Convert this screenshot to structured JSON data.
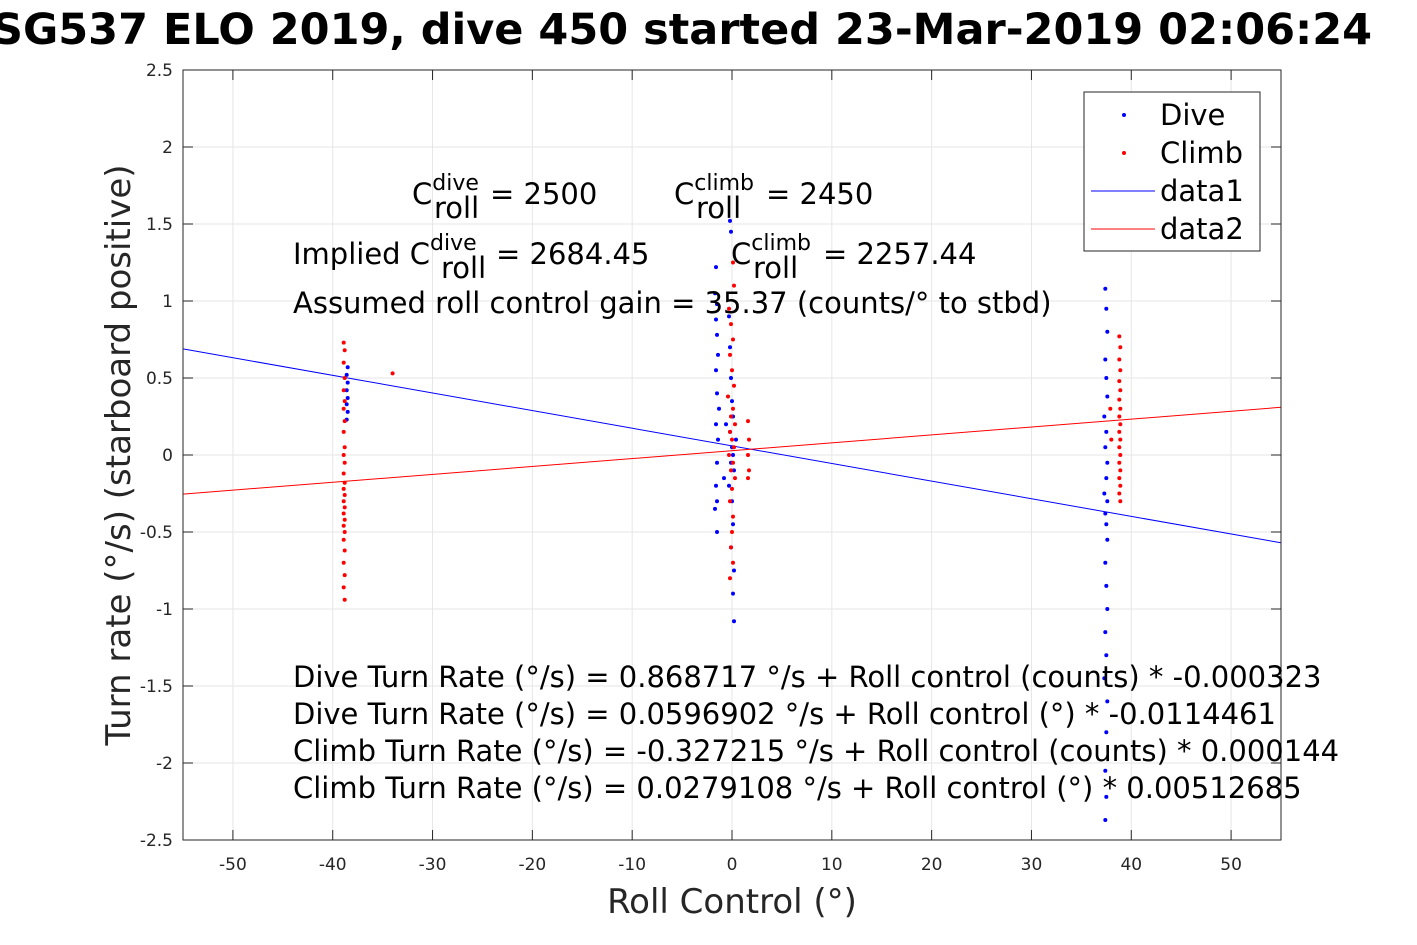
{
  "chart_data": {
    "type": "scatter",
    "title": "SG537 ELO 2019, dive 450 started 23-Mar-2019 02:06:24",
    "xlabel": "Roll Control (°)",
    "ylabel": "Turn rate (°/s) (starboard positive)",
    "xlim": [
      -55,
      55
    ],
    "ylim": [
      -2.5,
      2.5
    ],
    "x_ticks": [
      -50,
      -40,
      -30,
      -20,
      -10,
      0,
      10,
      20,
      30,
      40,
      50
    ],
    "y_ticks": [
      -2.5,
      -2,
      -1.5,
      -1,
      -0.5,
      0,
      0.5,
      1,
      1.5,
      2,
      2.5
    ],
    "x_tick_labels": [
      "-50",
      "-40",
      "-30",
      "-20",
      "-10",
      "0",
      "10",
      "20",
      "30",
      "40",
      "50"
    ],
    "y_tick_labels": [
      "-2.5",
      "-2",
      "-1.5",
      "-1",
      "-0.5",
      "0",
      "0.5",
      "1",
      "1.5",
      "2",
      "2.5"
    ],
    "grid": true,
    "legend_position": "top-right",
    "series": [
      {
        "name": "Dive",
        "color": "#0000ff",
        "marker": "dot",
        "points": [
          [
            -38.5,
            0.57
          ],
          [
            -38.6,
            0.52
          ],
          [
            -38.5,
            0.47
          ],
          [
            -38.6,
            0.42
          ],
          [
            -38.5,
            0.37
          ],
          [
            -38.6,
            0.33
          ],
          [
            -38.5,
            0.28
          ],
          [
            -38.6,
            0.23
          ],
          [
            -0.2,
            1.52
          ],
          [
            -0.1,
            1.45
          ],
          [
            -1.6,
            1.22
          ],
          [
            -1.7,
            1.05
          ],
          [
            -1.5,
            0.98
          ],
          [
            -1.6,
            0.88
          ],
          [
            -1.5,
            0.78
          ],
          [
            -1.4,
            0.65
          ],
          [
            -1.6,
            0.55
          ],
          [
            -1.5,
            0.4
          ],
          [
            -1.3,
            0.3
          ],
          [
            -1.6,
            0.2
          ],
          [
            -1.4,
            0.1
          ],
          [
            -1.5,
            -0.05
          ],
          [
            -1.6,
            -0.2
          ],
          [
            -1.5,
            -0.3
          ],
          [
            -1.7,
            -0.35
          ],
          [
            -1.5,
            -0.5
          ],
          [
            -0.3,
            0.9
          ],
          [
            -0.2,
            0.7
          ],
          [
            -0.1,
            0.5
          ],
          [
            0.0,
            0.35
          ],
          [
            0.1,
            0.25
          ],
          [
            -0.2,
            0.15
          ],
          [
            0.0,
            0.05
          ],
          [
            0.1,
            0.0
          ],
          [
            -0.1,
            -0.05
          ],
          [
            0.2,
            -0.1
          ],
          [
            -0.3,
            -0.2
          ],
          [
            0.0,
            -0.3
          ],
          [
            0.1,
            -0.45
          ],
          [
            -0.1,
            -0.6
          ],
          [
            0.2,
            -0.75
          ],
          [
            0.1,
            -0.9
          ],
          [
            0.2,
            -1.08
          ],
          [
            -0.6,
            0.2
          ],
          [
            0.4,
            0.1
          ],
          [
            -0.8,
            -0.15
          ],
          [
            37.4,
            1.08
          ],
          [
            37.5,
            0.95
          ],
          [
            37.6,
            0.8
          ],
          [
            37.4,
            0.62
          ],
          [
            37.5,
            0.5
          ],
          [
            37.6,
            0.38
          ],
          [
            37.3,
            0.25
          ],
          [
            37.5,
            0.15
          ],
          [
            37.4,
            0.05
          ],
          [
            37.6,
            -0.05
          ],
          [
            37.5,
            -0.15
          ],
          [
            37.3,
            -0.25
          ],
          [
            37.6,
            -0.3
          ],
          [
            37.4,
            -0.38
          ],
          [
            37.5,
            -0.45
          ],
          [
            37.6,
            -0.55
          ],
          [
            37.4,
            -0.7
          ],
          [
            37.5,
            -0.85
          ],
          [
            37.6,
            -1.0
          ],
          [
            37.4,
            -1.15
          ],
          [
            37.5,
            -1.3
          ],
          [
            37.3,
            -1.45
          ],
          [
            37.6,
            -1.6
          ],
          [
            37.5,
            -1.8
          ],
          [
            37.4,
            -2.05
          ],
          [
            37.5,
            -2.22
          ],
          [
            37.4,
            -2.37
          ]
        ]
      },
      {
        "name": "Climb",
        "color": "#ff0000",
        "marker": "dot",
        "points": [
          [
            -38.9,
            0.73
          ],
          [
            -38.8,
            0.68
          ],
          [
            -38.9,
            0.6
          ],
          [
            -38.8,
            0.5
          ],
          [
            -38.9,
            0.42
          ],
          [
            -38.8,
            0.35
          ],
          [
            -38.9,
            0.3
          ],
          [
            -38.8,
            0.22
          ],
          [
            -38.9,
            0.15
          ],
          [
            -38.8,
            0.05
          ],
          [
            -38.9,
            0.0
          ],
          [
            -38.8,
            -0.05
          ],
          [
            -38.9,
            -0.12
          ],
          [
            -38.8,
            -0.18
          ],
          [
            -38.9,
            -0.22
          ],
          [
            -38.8,
            -0.26
          ],
          [
            -38.9,
            -0.3
          ],
          [
            -38.8,
            -0.34
          ],
          [
            -38.9,
            -0.38
          ],
          [
            -38.8,
            -0.42
          ],
          [
            -38.9,
            -0.46
          ],
          [
            -38.8,
            -0.5
          ],
          [
            -38.9,
            -0.55
          ],
          [
            -38.8,
            -0.62
          ],
          [
            -38.9,
            -0.7
          ],
          [
            -38.8,
            -0.78
          ],
          [
            -38.9,
            -0.86
          ],
          [
            -38.8,
            -0.94
          ],
          [
            -34.0,
            0.53
          ],
          [
            0.1,
            1.25
          ],
          [
            0.2,
            1.1
          ],
          [
            -0.3,
            0.95
          ],
          [
            -0.1,
            0.85
          ],
          [
            0.1,
            0.75
          ],
          [
            -0.2,
            0.65
          ],
          [
            0.0,
            0.55
          ],
          [
            0.2,
            0.45
          ],
          [
            -0.4,
            0.38
          ],
          [
            0.1,
            0.3
          ],
          [
            -0.1,
            0.25
          ],
          [
            0.3,
            0.2
          ],
          [
            -0.2,
            0.15
          ],
          [
            0.0,
            0.1
          ],
          [
            0.2,
            0.05
          ],
          [
            -0.3,
            0.0
          ],
          [
            0.1,
            -0.05
          ],
          [
            -0.1,
            -0.1
          ],
          [
            0.3,
            -0.15
          ],
          [
            0.0,
            -0.22
          ],
          [
            -0.2,
            -0.3
          ],
          [
            0.1,
            -0.4
          ],
          [
            0.0,
            -0.5
          ],
          [
            -0.1,
            -0.6
          ],
          [
            0.1,
            -0.7
          ],
          [
            -0.2,
            -0.8
          ],
          [
            1.6,
            0.22
          ],
          [
            1.7,
            0.1
          ],
          [
            1.6,
            0.0
          ],
          [
            1.7,
            -0.1
          ],
          [
            1.6,
            -0.15
          ],
          [
            38.8,
            0.77
          ],
          [
            38.9,
            0.7
          ],
          [
            38.8,
            0.62
          ],
          [
            38.9,
            0.55
          ],
          [
            38.8,
            0.48
          ],
          [
            38.9,
            0.42
          ],
          [
            38.8,
            0.36
          ],
          [
            38.9,
            0.3
          ],
          [
            38.8,
            0.25
          ],
          [
            38.9,
            0.2
          ],
          [
            38.8,
            0.15
          ],
          [
            38.9,
            0.1
          ],
          [
            38.8,
            0.05
          ],
          [
            38.9,
            0.0
          ],
          [
            38.8,
            -0.05
          ],
          [
            38.9,
            -0.1
          ],
          [
            38.8,
            -0.15
          ],
          [
            38.9,
            -0.2
          ],
          [
            38.8,
            -0.25
          ],
          [
            38.9,
            -0.3
          ],
          [
            37.9,
            0.3
          ],
          [
            38.0,
            0.1
          ]
        ]
      },
      {
        "name": "data1",
        "color": "#0000ff",
        "marker": "line",
        "points": [
          [
            -55,
            0.6892
          ],
          [
            55,
            -0.5699
          ]
        ]
      },
      {
        "name": "data2",
        "color": "#ff0000",
        "marker": "line",
        "points": [
          [
            -55,
            -0.2541
          ],
          [
            55,
            0.3099
          ]
        ]
      }
    ],
    "annotations": {
      "line1_a": "C",
      "line1_a_sup": "dive",
      "line1_a_sub": "roll",
      "line1_a_val": " = 2500",
      "line1_b": "C",
      "line1_b_sup": "climb",
      "line1_b_sub": "roll",
      "line1_b_val": " = 2450",
      "line2_prefix": "Implied C",
      "line2_a_sup": "dive",
      "line2_a_sub": "roll",
      "line2_a_val": " = 2684.45",
      "line2_b": "C",
      "line2_b_sup": "climb",
      "line2_b_sub": "roll",
      "line2_b_val": " = 2257.44",
      "line3": "Assumed roll control gain = 35.37 (counts/° to stbd)",
      "eq1": "Dive Turn Rate (°/s) = 0.868717 °/s + Roll control (counts) * -0.000323",
      "eq2": "Dive Turn Rate (°/s) = 0.0596902 °/s + Roll control (°) * -0.0114461",
      "eq3": "Climb Turn Rate (°/s) = -0.327215 °/s + Roll control (counts) * 0.000144",
      "eq4": "Climb Turn Rate (°/s) = 0.0279108 °/s + Roll control (°) * 0.00512685"
    }
  }
}
